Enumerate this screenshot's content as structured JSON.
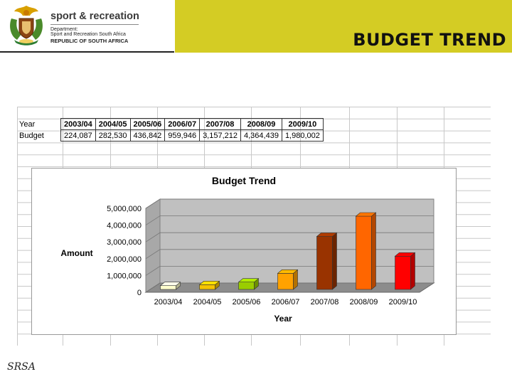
{
  "header": {
    "title": "BUDGET TREND",
    "department": "sport & recreation",
    "sub_line_1": "Department:",
    "sub_line_2": "Sport and Recreation South Africa",
    "country": "REPUBLIC OF SOUTH AFRICA"
  },
  "footer": {
    "label": "SRSA"
  },
  "table": {
    "row_labels": [
      "Year",
      "Budget"
    ],
    "years": [
      "2003/04",
      "2004/05",
      "2005/06",
      "2006/07",
      "2007/08",
      "2008/09",
      "2009/10"
    ],
    "budgets": [
      "224,087",
      "282,530",
      "436,842",
      "959,946",
      "3,157,212",
      "4,364,439",
      "1,980,002"
    ]
  },
  "chart_data": {
    "type": "bar",
    "title": "Budget Trend",
    "xlabel": "Year",
    "ylabel": "Amount",
    "categories": [
      "2003/04",
      "2004/05",
      "2005/06",
      "2006/07",
      "2007/08",
      "2008/09",
      "2009/10"
    ],
    "values": [
      224087,
      282530,
      436842,
      959946,
      3157212,
      4364439,
      1980002
    ],
    "ylim": [
      0,
      5000000
    ],
    "yticks": [
      "0",
      "1,000,000",
      "2,000,000",
      "3,000,000",
      "4,000,000",
      "5,000,000"
    ],
    "grid": true,
    "legend": "none",
    "bar_colors": [
      "#ffffcc",
      "#f5c400",
      "#9acd00",
      "#ffa200",
      "#993300",
      "#ff6600",
      "#ff0000"
    ],
    "plot_background": "#c0c0c0"
  }
}
